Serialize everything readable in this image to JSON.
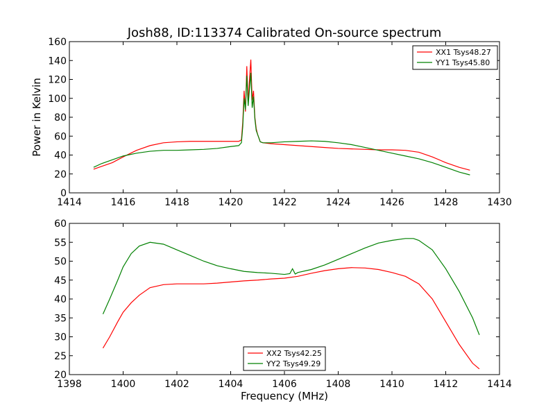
{
  "chart_data": [
    {
      "type": "line",
      "title": "Josh88, ID:113374 Calibrated On-source spectrum",
      "xlabel": "",
      "ylabel": "Power in Kelvin",
      "xlim": [
        1414,
        1430
      ],
      "ylim": [
        0,
        160
      ],
      "xticks": [
        1414,
        1416,
        1418,
        1420,
        1422,
        1424,
        1426,
        1428,
        1430
      ],
      "yticks": [
        0,
        20,
        40,
        60,
        80,
        100,
        120,
        140,
        160
      ],
      "grid": false,
      "legend_position": "top-right",
      "series": [
        {
          "name": "XX1 Tsys48.27",
          "color": "#ff0000",
          "x": [
            1414.9,
            1415.2,
            1415.6,
            1416.0,
            1416.5,
            1417.0,
            1417.5,
            1418.0,
            1418.5,
            1419.0,
            1419.5,
            1420.0,
            1420.3,
            1420.4,
            1420.45,
            1420.5,
            1420.55,
            1420.6,
            1420.65,
            1420.7,
            1420.75,
            1420.8,
            1420.85,
            1420.9,
            1420.95,
            1421.0,
            1421.05,
            1421.1,
            1421.2,
            1421.5,
            1422.0,
            1422.5,
            1423.0,
            1423.5,
            1424.0,
            1424.5,
            1425.0,
            1425.5,
            1426.0,
            1426.5,
            1427.0,
            1427.5,
            1428.0,
            1428.5,
            1428.9
          ],
          "y": [
            25,
            28,
            32,
            38,
            45,
            50,
            53,
            54,
            54.5,
            54.5,
            54.5,
            54.5,
            54.5,
            56,
            75,
            108,
            86,
            134,
            95,
            120,
            141,
            98,
            108,
            80,
            68,
            62,
            58,
            54,
            53,
            52,
            51,
            50,
            49,
            48,
            47,
            46.5,
            46,
            45.5,
            45.5,
            45,
            43,
            38,
            32,
            27,
            24
          ]
        },
        {
          "name": "YY1 Tsys45.80",
          "color": "#008000",
          "x": [
            1414.9,
            1415.2,
            1415.6,
            1416.0,
            1416.5,
            1417.0,
            1417.5,
            1418.0,
            1418.5,
            1419.0,
            1419.5,
            1420.0,
            1420.3,
            1420.4,
            1420.45,
            1420.5,
            1420.55,
            1420.6,
            1420.65,
            1420.7,
            1420.75,
            1420.8,
            1420.85,
            1420.9,
            1420.95,
            1421.0,
            1421.05,
            1421.1,
            1421.2,
            1421.5,
            1422.0,
            1422.5,
            1423.0,
            1423.5,
            1424.0,
            1424.5,
            1425.0,
            1425.5,
            1426.0,
            1426.5,
            1427.0,
            1427.5,
            1428.0,
            1428.5,
            1428.9
          ],
          "y": [
            27,
            31,
            35,
            39,
            42,
            44,
            45,
            45,
            45.5,
            46,
            47,
            49,
            50,
            53,
            70,
            100,
            88,
            124,
            92,
            110,
            127,
            90,
            102,
            78,
            66,
            62,
            58,
            54,
            53,
            53,
            54,
            54.5,
            55,
            54.5,
            53,
            51,
            48,
            45,
            42,
            39,
            36,
            32,
            27,
            22,
            19
          ]
        }
      ]
    },
    {
      "type": "line",
      "title": "",
      "xlabel": "Frequency (MHz)",
      "ylabel": "",
      "xlim": [
        1398,
        1414
      ],
      "ylim": [
        20,
        60
      ],
      "xticks": [
        1398,
        1400,
        1402,
        1404,
        1406,
        1408,
        1410,
        1412,
        1414
      ],
      "yticks": [
        20,
        25,
        30,
        35,
        40,
        45,
        50,
        55,
        60
      ],
      "grid": false,
      "legend_position": "lower-center",
      "series": [
        {
          "name": "XX2 Tsys42.25",
          "color": "#ff0000",
          "x": [
            1399.25,
            1399.5,
            1399.8,
            1400.0,
            1400.3,
            1400.6,
            1401.0,
            1401.5,
            1402.0,
            1402.5,
            1403.0,
            1403.5,
            1404.0,
            1404.5,
            1405.0,
            1405.5,
            1406.0,
            1406.5,
            1407.0,
            1407.5,
            1408.0,
            1408.5,
            1409.0,
            1409.5,
            1410.0,
            1410.5,
            1411.0,
            1411.5,
            1412.0,
            1412.5,
            1413.0,
            1413.25
          ],
          "y": [
            27,
            30,
            34,
            36.5,
            39,
            41,
            43,
            43.8,
            44,
            44,
            44,
            44.2,
            44.5,
            44.8,
            45,
            45.3,
            45.5,
            46,
            46.8,
            47.5,
            48,
            48.3,
            48.2,
            47.8,
            47,
            46,
            44,
            40,
            34,
            28,
            23,
            21.5
          ]
        },
        {
          "name": "YY2 Tsys49.29",
          "color": "#008000",
          "x": [
            1399.25,
            1399.5,
            1399.8,
            1400.0,
            1400.3,
            1400.6,
            1401.0,
            1401.5,
            1402.0,
            1402.5,
            1403.0,
            1403.5,
            1404.0,
            1404.5,
            1405.0,
            1405.5,
            1406.0,
            1406.2,
            1406.3,
            1406.4,
            1406.5,
            1407.0,
            1407.5,
            1408.0,
            1408.5,
            1409.0,
            1409.5,
            1410.0,
            1410.5,
            1410.8,
            1411.0,
            1411.5,
            1412.0,
            1412.5,
            1413.0,
            1413.25
          ],
          "y": [
            36,
            40,
            45,
            48.5,
            52,
            54,
            55,
            54.5,
            53,
            51.5,
            50,
            48.8,
            48,
            47.3,
            47,
            46.8,
            46.5,
            46.7,
            48,
            46.6,
            47,
            47.8,
            49,
            50.5,
            52,
            53.5,
            54.8,
            55.5,
            56,
            56,
            55.5,
            53,
            48,
            42,
            35,
            30.5
          ]
        }
      ]
    }
  ]
}
